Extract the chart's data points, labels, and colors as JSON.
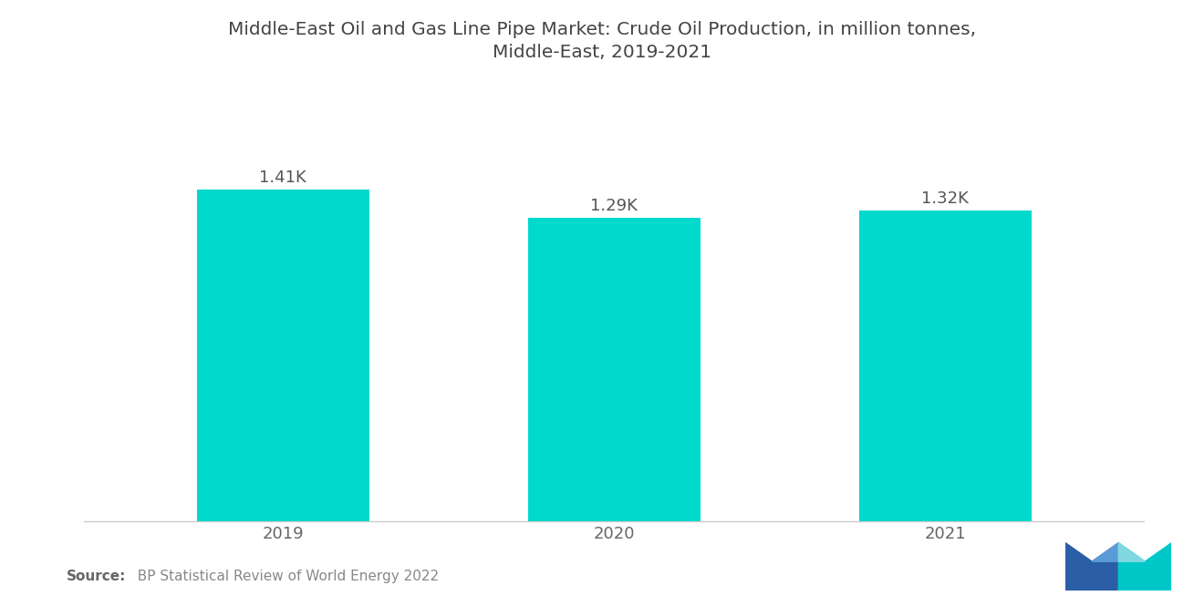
{
  "title_line1": "Middle-East Oil and Gas Line Pipe Market: Crude Oil Production, in million tonnes,",
  "title_line2": "Middle-East, 2019-2021",
  "categories": [
    "2019",
    "2020",
    "2021"
  ],
  "values": [
    1410,
    1290,
    1320
  ],
  "labels": [
    "1.41K",
    "1.29K",
    "1.32K"
  ],
  "bar_color": "#00D9CC",
  "background_color": "#ffffff",
  "source_bold": "Source:",
  "source_rest": "  BP Statistical Review of World Energy 2022",
  "title_fontsize": 14.5,
  "label_fontsize": 13,
  "tick_fontsize": 13,
  "source_fontsize": 11,
  "ylim": [
    0,
    1700
  ],
  "bar_width": 0.52,
  "title_color": "#444444",
  "tick_color": "#666666",
  "label_color": "#555555"
}
